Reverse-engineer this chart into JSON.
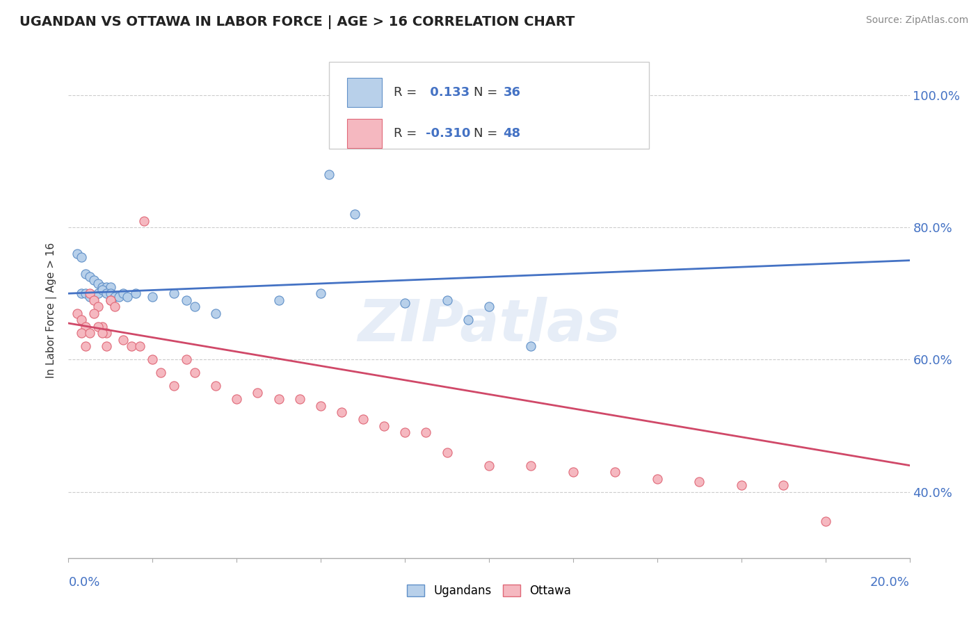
{
  "title": "UGANDAN VS OTTAWA IN LABOR FORCE | AGE > 16 CORRELATION CHART",
  "source_text": "Source: ZipAtlas.com",
  "ylabel": "In Labor Force | Age > 16",
  "xlim": [
    0.0,
    0.2
  ],
  "ylim": [
    0.3,
    1.05
  ],
  "yticks": [
    0.4,
    0.6,
    0.8,
    1.0
  ],
  "ytick_labels": [
    "40.0%",
    "60.0%",
    "80.0%",
    "100.0%"
  ],
  "ugandan_color": "#b8d0ea",
  "ottawa_color": "#f5b8c0",
  "ugandan_edge_color": "#6090c8",
  "ottawa_edge_color": "#e06878",
  "ugandan_line_color": "#4472c4",
  "ottawa_line_color": "#d04868",
  "r_n_color": "#4472c4",
  "watermark": "ZIPatlas",
  "ugandan_x": [
    0.002,
    0.003,
    0.004,
    0.005,
    0.006,
    0.007,
    0.008,
    0.009,
    0.01,
    0.003,
    0.004,
    0.005,
    0.006,
    0.007,
    0.008,
    0.009,
    0.01,
    0.011,
    0.012,
    0.013,
    0.014,
    0.016,
    0.02,
    0.025,
    0.028,
    0.03,
    0.035,
    0.05,
    0.06,
    0.062,
    0.068,
    0.08,
    0.09,
    0.095,
    0.1,
    0.11
  ],
  "ugandan_y": [
    0.76,
    0.755,
    0.73,
    0.725,
    0.72,
    0.715,
    0.71,
    0.71,
    0.71,
    0.7,
    0.7,
    0.695,
    0.695,
    0.7,
    0.705,
    0.7,
    0.7,
    0.695,
    0.695,
    0.7,
    0.695,
    0.7,
    0.695,
    0.7,
    0.69,
    0.68,
    0.67,
    0.69,
    0.7,
    0.88,
    0.82,
    0.685,
    0.69,
    0.66,
    0.68,
    0.62
  ],
  "ottawa_x": [
    0.002,
    0.003,
    0.004,
    0.005,
    0.006,
    0.007,
    0.008,
    0.009,
    0.01,
    0.003,
    0.004,
    0.005,
    0.006,
    0.007,
    0.008,
    0.009,
    0.01,
    0.011,
    0.013,
    0.015,
    0.017,
    0.018,
    0.02,
    0.022,
    0.025,
    0.028,
    0.03,
    0.035,
    0.04,
    0.045,
    0.05,
    0.055,
    0.06,
    0.065,
    0.07,
    0.075,
    0.08,
    0.085,
    0.09,
    0.1,
    0.11,
    0.12,
    0.13,
    0.14,
    0.15,
    0.16,
    0.17,
    0.18
  ],
  "ottawa_y": [
    0.67,
    0.66,
    0.65,
    0.7,
    0.69,
    0.68,
    0.65,
    0.64,
    0.69,
    0.64,
    0.62,
    0.64,
    0.67,
    0.65,
    0.64,
    0.62,
    0.69,
    0.68,
    0.63,
    0.62,
    0.62,
    0.81,
    0.6,
    0.58,
    0.56,
    0.6,
    0.58,
    0.56,
    0.54,
    0.55,
    0.54,
    0.54,
    0.53,
    0.52,
    0.51,
    0.5,
    0.49,
    0.49,
    0.46,
    0.44,
    0.44,
    0.43,
    0.43,
    0.42,
    0.415,
    0.41,
    0.41,
    0.355
  ]
}
